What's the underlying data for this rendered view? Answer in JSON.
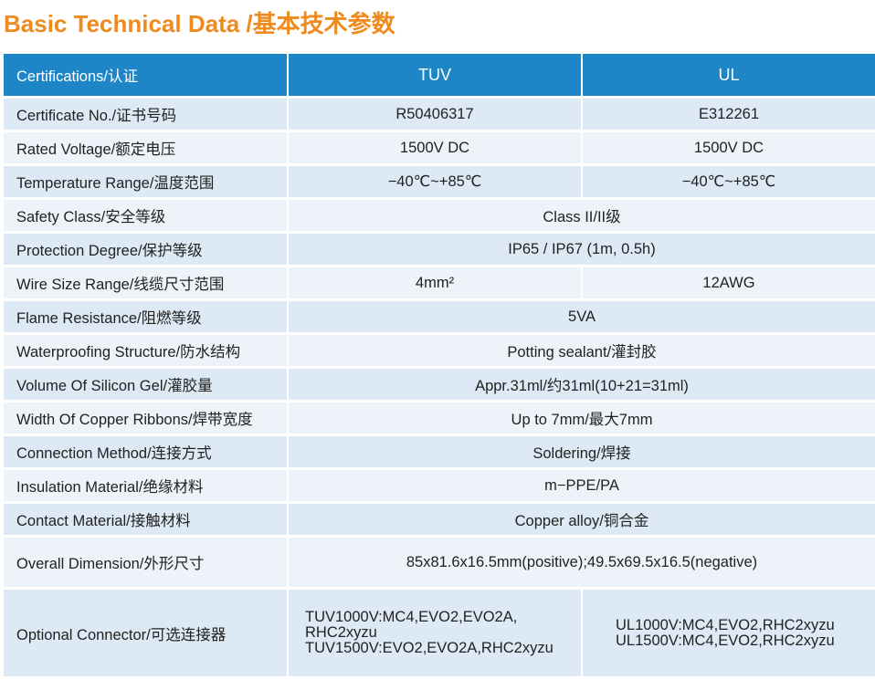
{
  "title": "Basic Technical Data /基本技术参数",
  "header": {
    "label": "Certifications/认证",
    "col1": "TUV",
    "col2": "UL"
  },
  "rows": [
    {
      "label": "Certificate No./证书号码",
      "tuv": "R50406317",
      "ul": "E312261"
    },
    {
      "label": "Rated Voltage/额定电压",
      "tuv": "1500V DC",
      "ul": "1500V DC"
    },
    {
      "label": "Temperature Range/温度范围",
      "tuv": "−40℃~+85℃",
      "ul": "−40℃~+85℃"
    },
    {
      "label": "Safety Class/安全等级",
      "value": "Class II/II级"
    },
    {
      "label": "Protection Degree/保护等级",
      "value": "IP65 / IP67 (1m, 0.5h)"
    },
    {
      "label": "Wire Size Range/线缆尺寸范围",
      "tuv": "4mm²",
      "ul": "12AWG"
    },
    {
      "label": "Flame Resistance/阻燃等级",
      "value": "5VA"
    },
    {
      "label": "Waterproofing Structure/防水结构",
      "value": "Potting sealant/灌封胶"
    },
    {
      "label": "Volume Of Silicon Gel/灌胶量",
      "value": "Appr.31ml/约31ml(10+21=31ml)"
    },
    {
      "label": "Width Of Copper Ribbons/焊带宽度",
      "value": "Up to 7mm/最大7mm"
    },
    {
      "label": "Connection Method/连接方式",
      "value": "Soldering/焊接"
    },
    {
      "label": "Insulation Material/绝缘材料",
      "value": "m−PPE/PA"
    },
    {
      "label": "Contact Material/接触材料",
      "value": "Copper alloy/铜合金"
    },
    {
      "label": "Overall Dimension/外形尺寸",
      "value": "85x81.6x16.5mm(positive);49.5x69.5x16.5(negative)"
    }
  ],
  "connector": {
    "label": "Optional Connector/可选连接器",
    "tuv_lines": [
      "TUV1000V:MC4,EVO2,EVO2A,",
      "RHC2xyzu",
      "TUV1500V:EVO2,EVO2A,RHC2xyzu"
    ],
    "ul_lines": [
      "UL1000V:MC4,EVO2,RHC2xyzu",
      "UL1500V:MC4,EVO2,RHC2xyzu"
    ]
  }
}
